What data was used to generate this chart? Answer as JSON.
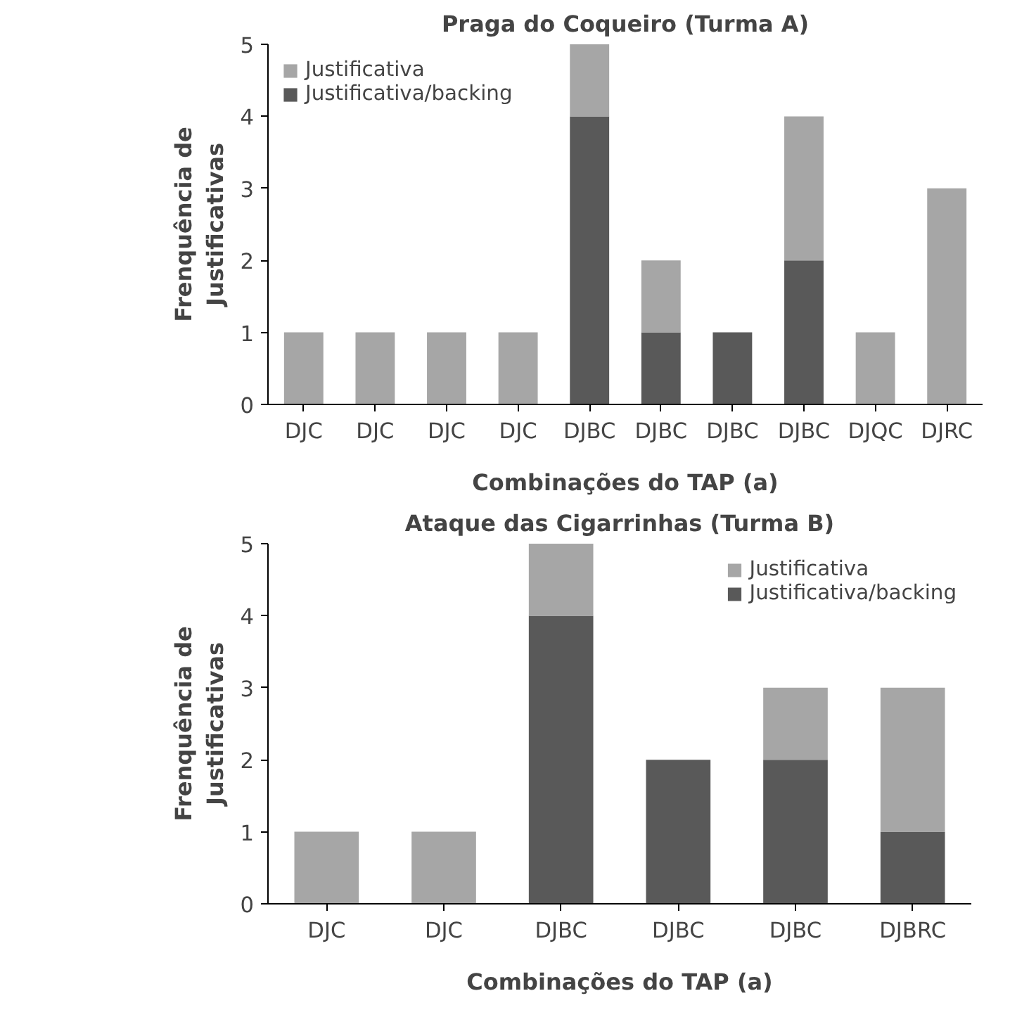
{
  "chart_data": [
    {
      "type": "bar",
      "title": "Praga do Coqueiro (Turma A)",
      "xlabel": "Combinações do TAP (a)",
      "ylabel": "Frenquência de\nJustificativas",
      "categories": [
        "DJC",
        "DJC",
        "DJC",
        "DJC",
        "DJBC",
        "DJBC",
        "DJBC",
        "DJBC",
        "DJQC",
        "DJRC"
      ],
      "stacked": true,
      "ylim": [
        0,
        5
      ],
      "yticks": [
        0,
        1,
        2,
        3,
        4,
        5
      ],
      "grid": false,
      "legend": "top left",
      "series": [
        {
          "name": "Justificativa/backing",
          "color": "#595959",
          "values": [
            0,
            0,
            0,
            0,
            4,
            1,
            1,
            2,
            0,
            0
          ]
        },
        {
          "name": "Justificativa",
          "color": "#a6a6a6",
          "values": [
            1,
            1,
            1,
            1,
            1,
            1,
            0,
            2,
            1,
            3
          ]
        }
      ]
    },
    {
      "type": "bar",
      "title": "Ataque das Cigarrinhas (Turma B)",
      "xlabel": "Combinações do TAP (a)",
      "ylabel": "Frenquência de\nJustificativas",
      "categories": [
        "DJC",
        "DJC",
        "DJBC",
        "DJBC",
        "DJBC",
        "DJBRC"
      ],
      "stacked": true,
      "ylim": [
        0,
        5
      ],
      "yticks": [
        0,
        1,
        2,
        3,
        4,
        5
      ],
      "grid": false,
      "legend": "top right",
      "series": [
        {
          "name": "Justificativa/backing",
          "color": "#595959",
          "values": [
            0,
            0,
            4,
            2,
            2,
            1
          ]
        },
        {
          "name": "Justificativa",
          "color": "#a6a6a6",
          "values": [
            1,
            1,
            1,
            0,
            1,
            2
          ]
        }
      ]
    }
  ]
}
